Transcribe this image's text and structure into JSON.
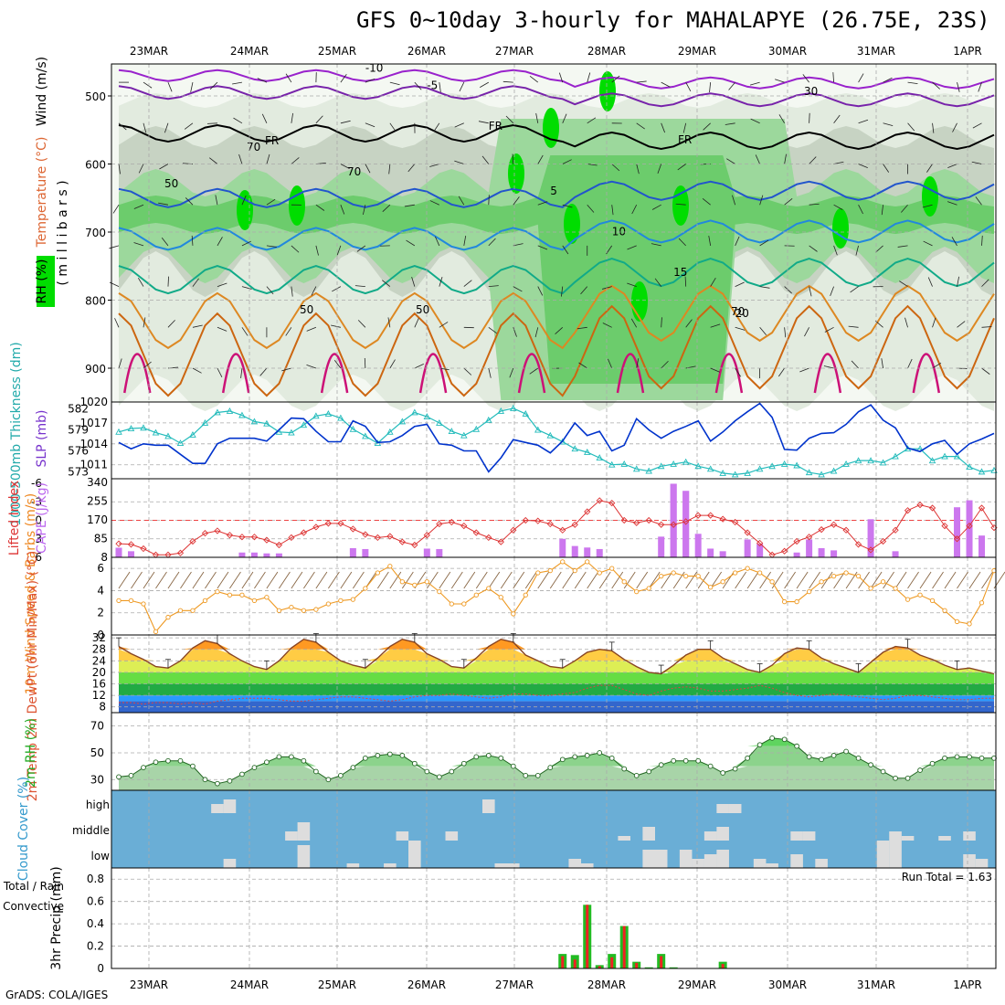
{
  "title": "GFS 0~10day 3-hourly for MAHALAPYE (26.75E, 23S)",
  "credit": "GrADS: COLA/IGES",
  "colors": {
    "rh_green": "#00dd00",
    "thickness": "#22bbbb",
    "slp": "#0033cc",
    "lifted_index": "#dd3333",
    "cape": "#cc77ee",
    "wind": "#ee9922",
    "barb": "#886644",
    "temp_line": "#884422",
    "dewpt": "#dd4444",
    "cloud": "#6aaed6",
    "cloud_fill": "#dddddd",
    "precip_total": "#22bb22",
    "precip_conv": "#ee2222"
  },
  "chart_data": [
    {
      "type": "heatmap",
      "name": "cross-section",
      "ylabel_parts": [
        "Wind (m/s)",
        "Temperature (°C)",
        "RH (%)"
      ],
      "ylabel_unit": "( m i l l i b a r s )",
      "y_ticks": [
        "500",
        "600",
        "700",
        "800",
        "900"
      ],
      "contour_labels": [
        "-10",
        "-5",
        "-5",
        "FR",
        "FR",
        "5",
        "10",
        "10",
        "15",
        "15",
        "20",
        "20",
        "30",
        "30",
        "50",
        "50",
        "50",
        "50",
        "70",
        "70",
        "70"
      ]
    },
    {
      "type": "line",
      "name": "thickness-slp",
      "ylabel_left": "1000-500mb Thickness (dm)",
      "ylabel_right": "SLP (mb)",
      "left_ticks": [
        "582",
        "579",
        "576",
        "573"
      ],
      "right_ticks": [
        "1020",
        "1017",
        "1014",
        "1011"
      ],
      "left_range": [
        572,
        583
      ],
      "right_range": [
        1009,
        1020
      ],
      "series": [
        {
          "name": "1000-500mb Thickness",
          "values": [
            578.7,
            579.2,
            579.3,
            578.6,
            578.1,
            577.1,
            578.3,
            580.0,
            581.5,
            581.7,
            581.1,
            580.2,
            579.9,
            578.7,
            578.6,
            579.7,
            581.0,
            581.3,
            580.7,
            579.1,
            578.1,
            577.1,
            578.7,
            580.2,
            581.5,
            580.9,
            580.0,
            578.8,
            578.2,
            579.1,
            580.4,
            581.7,
            582.1,
            581.3,
            579.0,
            578.2,
            577.3,
            576.3,
            575.8,
            575.0,
            574.0,
            574.1,
            573.4,
            573.1,
            573.8,
            574.1,
            574.4,
            573.8,
            573.4,
            572.8,
            572.6,
            572.8,
            573.4,
            573.8,
            574.1,
            573.9,
            572.9,
            572.6,
            573.1,
            574.1,
            574.6,
            574.6,
            574.3,
            575.2,
            576.3,
            576.3,
            574.6,
            575.2,
            575.2,
            573.7,
            573.0,
            573.2
          ]
        },
        {
          "name": "SLP",
          "values": [
            1014.2,
            1013.3,
            1014.0,
            1013.8,
            1013.8,
            1012.5,
            1011.2,
            1011.2,
            1014.0,
            1014.8,
            1014.8,
            1014.8,
            1014.4,
            1016.0,
            1017.7,
            1017.6,
            1015.8,
            1014.3,
            1014.3,
            1017.3,
            1016.5,
            1014.2,
            1014.3,
            1015.2,
            1016.5,
            1016.8,
            1014.0,
            1013.8,
            1013.0,
            1013.0,
            1010.0,
            1012.0,
            1014.6,
            1014.2,
            1013.8,
            1012.7,
            1014.4,
            1017.0,
            1015.2,
            1015.8,
            1013.0,
            1013.8,
            1017.6,
            1016.0,
            1014.8,
            1015.8,
            1016.5,
            1017.3,
            1014.4,
            1015.7,
            1017.3,
            1018.6,
            1019.8,
            1017.8,
            1013.2,
            1013.1,
            1014.8,
            1015.5,
            1015.6,
            1016.8,
            1018.6,
            1019.6,
            1017.4,
            1016.3,
            1013.4,
            1012.9,
            1014.0,
            1014.5,
            1012.5,
            1014.0,
            1014.7,
            1015.5
          ]
        }
      ]
    },
    {
      "type": "bar",
      "name": "cape-lifted-index",
      "ylabel_left": "Lifted Index",
      "ylabel_right": "CAPE (J/kg)",
      "li_ticks": [
        "-6",
        "-3",
        "0",
        "3",
        "6"
      ],
      "cape_ticks": [
        "340",
        "255",
        "170",
        "85",
        "8"
      ],
      "li_range": [
        6,
        -6
      ],
      "cape_range": [
        0,
        340
      ],
      "lifted_index": [
        3.8,
        3.9,
        4.6,
        5.6,
        5.6,
        5.3,
        3.4,
        2.1,
        1.7,
        2.4,
        2.7,
        2.7,
        3.2,
        4.0,
        2.8,
        2.0,
        1.1,
        0.5,
        0.5,
        1.4,
        2.3,
        2.8,
        2.6,
        3.5,
        4.0,
        2.4,
        0.6,
        0.3,
        0.9,
        2.0,
        2.8,
        3.5,
        1.6,
        0.0,
        0.1,
        0.6,
        1.6,
        0.7,
        -1.4,
        -3.2,
        -2.8,
        0.0,
        0.4,
        0.0,
        0.7,
        0.7,
        0.2,
        -0.8,
        -0.8,
        -0.2,
        0.3,
        2.0,
        3.7,
        5.6,
        5.0,
        3.4,
        2.7,
        1.5,
        0.7,
        1.6,
        3.9,
        4.8,
        3.4,
        1.6,
        -1.6,
        -2.5,
        -2.0,
        0.9,
        3.0,
        0.9,
        -2.0,
        1.2
      ],
      "cape": [
        44,
        28,
        0,
        0,
        0,
        0,
        0,
        0,
        0,
        0,
        0,
        0,
        0,
        0,
        0,
        0,
        0,
        0,
        0,
        28,
        24,
        0,
        0,
        28,
        28,
        0,
        0,
        0,
        0,
        60,
        44,
        0,
        0,
        0,
        0,
        0,
        0,
        0,
        0,
        0,
        0,
        0,
        0,
        0,
        0,
        0,
        0,
        0,
        0,
        0,
        0,
        0,
        0,
        0,
        0,
        0,
        0,
        0,
        0,
        0,
        0,
        0,
        0,
        0,
        0,
        0,
        0,
        0,
        0,
        0,
        0,
        0
      ]
    },
    {
      "type": "line",
      "name": "10m-wind",
      "ylabel": "10m Wind Speed & Barbs (m/s)",
      "y_ticks": [
        "6",
        "4",
        "2",
        "0"
      ],
      "ylim": [
        0,
        7
      ],
      "speed": [
        3.1,
        3.1,
        2.8,
        0.3,
        1.6,
        2.2,
        2.2,
        3.1,
        3.9,
        3.6,
        3.6,
        3.1,
        3.4,
        2.2,
        2.5,
        2.2,
        2.3,
        2.8,
        3.1,
        3.2,
        4.2,
        5.6,
        6.2,
        4.8,
        4.5,
        4.8,
        3.9,
        2.8,
        2.8,
        3.6,
        4.2,
        3.4,
        1.9,
        3.6,
        5.6,
        5.8,
        6.6,
        5.8,
        6.6,
        5.6,
        6.0,
        4.8,
        3.9,
        4.2,
        5.3,
        5.6,
        5.3,
        5.3,
        4.3,
        4.8,
        5.6,
        6.0,
        5.6,
        4.8,
        3.0,
        3.0,
        3.9,
        4.8,
        5.3,
        5.6,
        5.3,
        4.2,
        4.8,
        4.2,
        3.2,
        3.6,
        3.1,
        2.2,
        1.2,
        1.0,
        2.9,
        5.8
      ]
    },
    {
      "type": "area",
      "name": "2m-temp-dewpt",
      "ylabel": "2m Temp 2m DewPt (6hr Min/Max) (°C)",
      "y_ticks": [
        "32",
        "28",
        "24",
        "20",
        "16",
        "12",
        "8"
      ],
      "ylim": [
        6,
        33
      ],
      "temp": [
        29.0,
        26.5,
        24.5,
        22.0,
        21.5,
        24.0,
        28.5,
        31.0,
        30.0,
        26.5,
        24.0,
        22.0,
        21.0,
        24.0,
        28.5,
        31.5,
        30.5,
        27.0,
        24.0,
        22.5,
        21.5,
        25.0,
        29.0,
        31.5,
        30.5,
        26.5,
        24.5,
        22.0,
        21.5,
        25.0,
        29.0,
        31.5,
        30.5,
        26.0,
        24.0,
        22.0,
        21.5,
        24.0,
        27.0,
        28.0,
        27.5,
        24.5,
        22.0,
        20.0,
        19.5,
        22.5,
        26.0,
        28.0,
        28.0,
        25.0,
        23.0,
        21.0,
        20.0,
        22.5,
        26.5,
        28.5,
        28.0,
        25.0,
        23.0,
        21.5,
        20.0,
        23.5,
        27.0,
        29.0,
        28.5,
        26.0,
        24.5,
        22.5,
        21.0,
        21.5,
        20.5,
        19.5
      ],
      "dewpt": [
        9.5,
        9.5,
        9.0,
        9.5,
        9.5,
        9.0,
        9.5,
        9.0,
        10.0,
        10.5,
        11.0,
        11.0,
        11.0,
        10.5,
        10.0,
        10.0,
        10.5,
        11.0,
        11.5,
        11.5,
        11.0,
        10.5,
        10.0,
        10.5,
        11.5,
        12.0,
        12.0,
        12.5,
        12.0,
        11.5,
        11.0,
        11.5,
        12.5,
        12.5,
        12.0,
        12.0,
        12.5,
        13.0,
        14.5,
        15.5,
        15.5,
        14.0,
        12.5,
        12.0,
        13.5,
        14.5,
        15.0,
        14.5,
        13.5,
        13.5,
        14.0,
        14.5,
        15.5,
        14.5,
        13.0,
        12.0,
        11.5,
        12.0,
        12.5,
        12.0,
        11.5,
        11.0,
        10.5,
        11.0,
        12.0,
        12.0,
        11.5,
        11.0,
        10.5,
        10.5,
        11.0,
        11.0
      ]
    },
    {
      "type": "area",
      "name": "2m-rh",
      "ylabel": "2m RH (%)",
      "y_ticks": [
        "70",
        "50",
        "30"
      ],
      "ylim": [
        22,
        80
      ],
      "values": [
        32,
        33,
        39,
        43,
        44,
        44,
        40,
        30,
        27,
        29,
        34,
        39,
        43,
        47,
        47,
        44,
        36,
        30,
        33,
        39,
        46,
        48,
        49,
        48,
        42,
        36,
        32,
        36,
        42,
        47,
        48,
        46,
        40,
        33,
        33,
        39,
        45,
        47,
        48,
        50,
        46,
        38,
        33,
        36,
        41,
        44,
        44,
        44,
        40,
        35,
        38,
        46,
        56,
        61,
        60,
        55,
        47,
        45,
        48,
        51,
        46,
        41,
        36,
        31,
        31,
        37,
        42,
        46,
        47,
        47,
        46,
        46
      ]
    },
    {
      "type": "heatmap",
      "name": "cloud-cover",
      "ylabel": "Cloud Cover (%)",
      "levels": [
        "high",
        "middle",
        "low"
      ]
    },
    {
      "type": "bar",
      "name": "3hr-precip",
      "ylabel": "3hr Precip (mm)",
      "legend": [
        "Total / Rain",
        "Convective"
      ],
      "run_total_label": "Run Total = 1.63",
      "y_ticks": [
        "0.8",
        "0.6",
        "0.4",
        "0.2",
        "0"
      ],
      "ylim": [
        0,
        0.9
      ],
      "total": [
        0,
        0,
        0,
        0,
        0,
        0,
        0,
        0,
        0,
        0,
        0,
        0,
        0,
        0,
        0,
        0,
        0,
        0,
        0,
        0,
        0,
        0,
        0,
        0,
        0,
        0,
        0,
        0,
        0,
        0,
        0,
        0,
        0,
        0,
        0,
        0,
        0.13,
        0.12,
        0.57,
        0.03,
        0.13,
        0.38,
        0.06,
        0.01,
        0.13,
        0.01,
        0,
        0,
        0,
        0.06,
        0,
        0,
        0,
        0,
        0,
        0,
        0,
        0,
        0,
        0,
        0,
        0,
        0,
        0,
        0,
        0,
        0,
        0,
        0,
        0,
        0,
        0
      ],
      "convective": [
        0,
        0,
        0,
        0,
        0,
        0,
        0,
        0,
        0,
        0,
        0,
        0,
        0,
        0,
        0,
        0,
        0,
        0,
        0,
        0,
        0,
        0,
        0,
        0,
        0,
        0,
        0,
        0,
        0,
        0,
        0,
        0,
        0,
        0,
        0,
        0,
        0.11,
        0.08,
        0.57,
        0.02,
        0.1,
        0.38,
        0.05,
        0,
        0.11,
        0,
        0,
        0,
        0,
        0.04,
        0,
        0,
        0,
        0,
        0,
        0,
        0,
        0,
        0,
        0,
        0,
        0,
        0,
        0,
        0,
        0,
        0,
        0,
        0,
        0,
        0,
        0
      ]
    }
  ],
  "x_axis": {
    "labels": [
      "23MAR",
      "24MAR",
      "25MAR",
      "26MAR",
      "27MAR",
      "28MAR",
      "29MAR",
      "30MAR",
      "31MAR",
      "1APR"
    ]
  }
}
